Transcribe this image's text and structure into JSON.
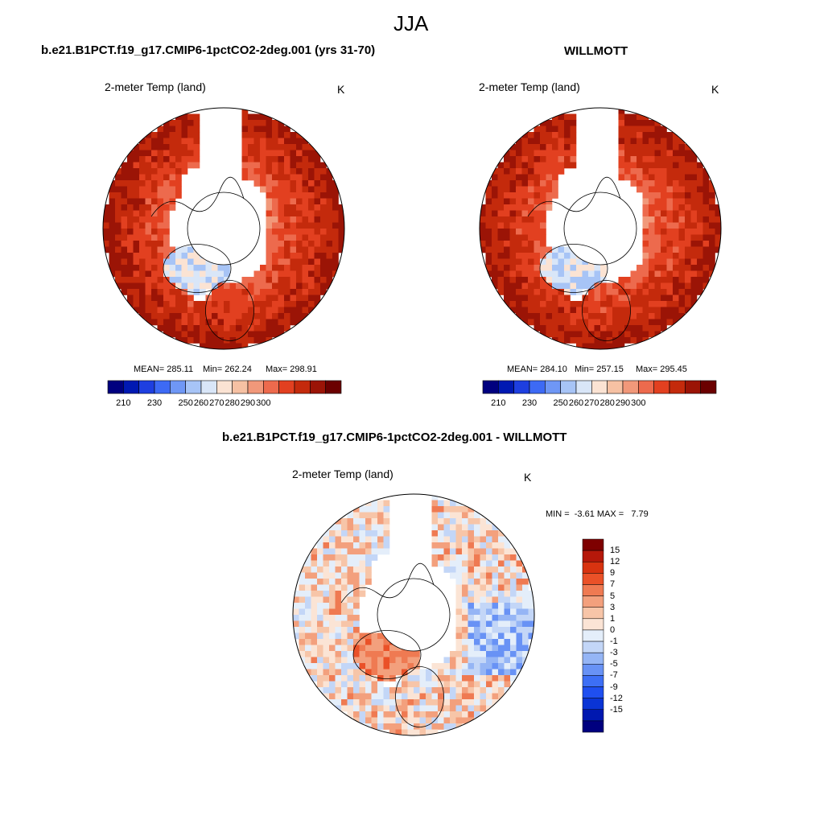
{
  "figure": {
    "title": "JJA",
    "units": "K",
    "variable": "2-meter Temp (land)"
  },
  "colors": {
    "abs_palette": [
      "#00007f",
      "#0019b2",
      "#1e3fe0",
      "#3d6af5",
      "#6f97f5",
      "#a7c4f6",
      "#d9e6f8",
      "#fbe3d3",
      "#f6c1a3",
      "#f1987a",
      "#ed6a4d",
      "#e24020",
      "#c42a0c",
      "#9b1406",
      "#6b0000"
    ],
    "diff_palette": [
      "#00007f",
      "#0018b0",
      "#0a34d5",
      "#1f4ff0",
      "#3d6ff5",
      "#6892f5",
      "#95b5f5",
      "#c3d6f7",
      "#e4eefa",
      "#fbe4d5",
      "#f7c5a8",
      "#f3a07d",
      "#ef7a52",
      "#ea5128",
      "#d83310",
      "#b5180a",
      "#7e0000"
    ],
    "ocean": "#ffffff",
    "coast": "#000000"
  },
  "chart_data": [
    {
      "type": "heatmap",
      "title": "b.e21.B1PCT.f19_g17.CMIP6-1pctCO2-2deg.001 (yrs 31-70)",
      "variable": "2-meter Temp (land)",
      "units": "K",
      "mean_label": "MEAN= 285.11",
      "min_label": "Min= 262.24",
      "max_label": "Max= 298.91",
      "mean": 285.11,
      "min": 262.24,
      "max": 298.91,
      "colorbar_ticks": [
        "210",
        "230",
        "250",
        "260",
        "270",
        "280",
        "290",
        "300"
      ],
      "colorbar_levels": [
        210,
        220,
        230,
        240,
        250,
        255,
        260,
        265,
        270,
        275,
        280,
        285,
        290,
        295,
        300
      ],
      "projection": "north polar stereographic"
    },
    {
      "type": "heatmap",
      "title": "WILLMOTT",
      "variable": "2-meter Temp (land)",
      "units": "K",
      "mean_label": "MEAN= 284.10",
      "min_label": "Min= 257.15",
      "max_label": "Max= 295.45",
      "mean": 284.1,
      "min": 257.15,
      "max": 295.45,
      "colorbar_ticks": [
        "210",
        "230",
        "250",
        "260",
        "270",
        "280",
        "290",
        "300"
      ],
      "colorbar_levels": [
        210,
        220,
        230,
        240,
        250,
        255,
        260,
        265,
        270,
        275,
        280,
        285,
        290,
        295,
        300
      ],
      "projection": "north polar stereographic"
    },
    {
      "type": "heatmap",
      "title": "b.e21.B1PCT.f19_g17.CMIP6-1pctCO2-2deg.001 - WILLMOTT",
      "variable": "2-meter Temp (land)",
      "units": "K",
      "minmax_label": "MIN =  -3.61 MAX =   7.79",
      "min": -3.61,
      "max": 7.79,
      "colorbar_ticks": [
        "15",
        "12",
        "9",
        "7",
        "5",
        "3",
        "1",
        "0",
        "-1",
        "-3",
        "-5",
        "-7",
        "-9",
        "-12",
        "-15"
      ],
      "projection": "north polar stereographic"
    }
  ]
}
